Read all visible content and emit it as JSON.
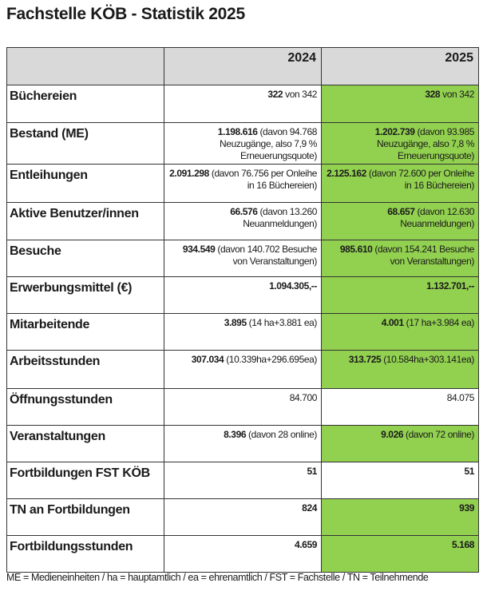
{
  "title": "Fachstelle KÖB - Statistik 2025",
  "header": {
    "col1": "",
    "col2": "2024",
    "col3": "2025"
  },
  "highlight_color": "#92d050",
  "header_color": "#d9d9d9",
  "rows": [
    {
      "label": "Büchereien",
      "v2024": {
        "bold": "322",
        "rest": " von 342"
      },
      "v2025": {
        "bold": "328",
        "rest": " von 342"
      },
      "highlight2025": true
    },
    {
      "label": "Bestand (ME)",
      "v2024": {
        "bold": "1.198.616",
        "rest": " (davon 94.768 Neuzugänge, also 7,9 % Erneuerungsquote)"
      },
      "v2025": {
        "bold": "1.202.739",
        "rest": " (davon 93.985 Neuzugänge, also 7,8 % Erneuerungsquote)"
      },
      "highlight2025": true
    },
    {
      "label": "Entleihungen",
      "v2024": {
        "bold": "2.091.298",
        "rest": " (davon 76.756 per Onleihe in 16 Büchereien)"
      },
      "v2025": {
        "bold": "2.125.162",
        "rest": " (davon 72.600 per Onleihe in 16 Büchereien)"
      },
      "highlight2025": true
    },
    {
      "label": "Aktive Benutzer/innen",
      "v2024": {
        "bold": "66.576",
        "rest": " (davon 13.260 Neuanmeldungen)"
      },
      "v2025": {
        "bold": "68.657",
        "rest": " (davon 12.630 Neuanmeldungen)"
      },
      "highlight2025": true
    },
    {
      "label": "Besuche",
      "v2024": {
        "bold": "934.549",
        "rest": " (davon 140.702 Besuche von Veranstaltungen)"
      },
      "v2025": {
        "bold": "985.610",
        "rest": " (davon 154.241 Besuche von Veranstaltungen)"
      },
      "highlight2025": true
    },
    {
      "label": "Erwerbungsmittel (€)",
      "v2024": {
        "bold": "1.094.305,--",
        "rest": ""
      },
      "v2025": {
        "bold": "1.132.701,--",
        "rest": ""
      },
      "highlight2025": true
    },
    {
      "label": "Mitarbeitende",
      "v2024": {
        "bold": "3.895",
        "rest": " (14 ha+3.881 ea)"
      },
      "v2025": {
        "bold": "4.001",
        "rest": " (17 ha+3.984 ea)"
      },
      "highlight2025": true
    },
    {
      "label": "Arbeitsstunden",
      "v2024": {
        "bold": "307.034",
        "rest": " (10.339ha+296.695ea)"
      },
      "v2025": {
        "bold": "313.725",
        "rest": " (10.584ha+303.141ea)"
      },
      "highlight2025": true
    },
    {
      "label": "Öffnungsstunden",
      "v2024": {
        "bold": "",
        "rest": "84.700"
      },
      "v2025": {
        "bold": "",
        "rest": "84.075"
      },
      "highlight2025": false
    },
    {
      "label": "Veranstaltungen",
      "v2024": {
        "bold": "8.396",
        "rest": " (davon 28 online)"
      },
      "v2025": {
        "bold": "9.026",
        "rest": " (davon 72 online)"
      },
      "highlight2025": true
    },
    {
      "label": "Fortbildungen FST KÖB",
      "v2024": {
        "bold": "51",
        "rest": ""
      },
      "v2025": {
        "bold": "51",
        "rest": ""
      },
      "highlight2025": false
    },
    {
      "label": "TN an Fortbildungen",
      "v2024": {
        "bold": "824",
        "rest": ""
      },
      "v2025": {
        "bold": "939",
        "rest": ""
      },
      "highlight2025": true
    },
    {
      "label": "Fortbildungsstunden",
      "v2024": {
        "bold": "4.659",
        "rest": ""
      },
      "v2025": {
        "bold": "5.168",
        "rest": ""
      },
      "highlight2025": true
    }
  ],
  "footer": "ME = Medieneinheiten / ha = hauptamtlich / ea = ehrenamtlich / FST = Fachstelle / TN = Teilnehmende"
}
